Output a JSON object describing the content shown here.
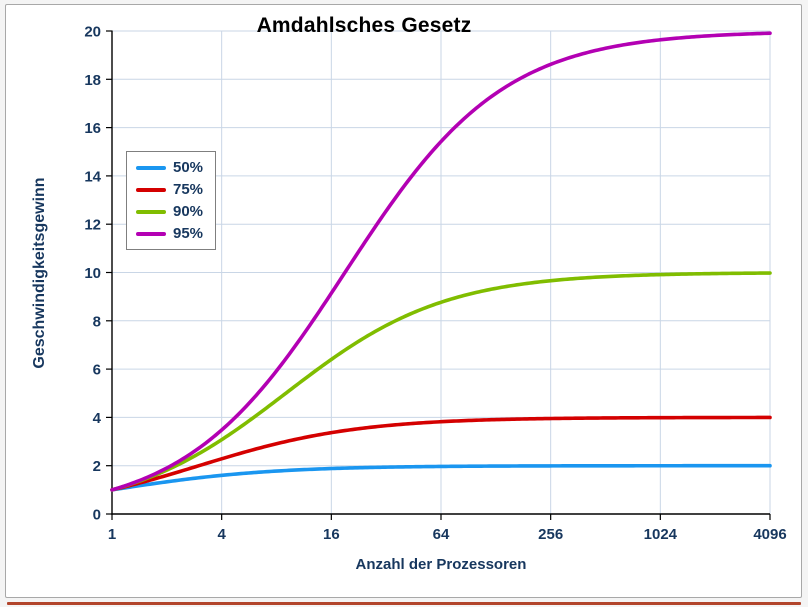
{
  "frame": {
    "bottom_accent_color": "#b2452c"
  },
  "chart_data": {
    "type": "line",
    "title": "Amdahlsches Gesetz",
    "xlabel": "Anzahl der Prozessoren",
    "ylabel": "Geschwindigkeitsgewinn",
    "x_scale": "log4",
    "x_range": [
      1,
      4096
    ],
    "x_ticks": [
      1,
      4,
      16,
      64,
      256,
      1024,
      4096
    ],
    "ylim": [
      0,
      20
    ],
    "y_ticks": [
      0,
      2,
      4,
      6,
      8,
      10,
      12,
      14,
      16,
      18,
      20
    ],
    "grid": true,
    "grid_color": "#c9d6e6",
    "axis_color": "#000000",
    "text_color": "#17375e",
    "title_color": "#000000",
    "legend_position": "upper-left",
    "series": [
      {
        "name": "50%",
        "parallel_fraction": 0.5,
        "color": "#1a96f0",
        "x": [
          1,
          2,
          4,
          8,
          16,
          32,
          64,
          128,
          256,
          512,
          1024,
          2048,
          4096
        ],
        "values": [
          1,
          1.333,
          1.6,
          1.778,
          1.882,
          1.939,
          1.969,
          1.984,
          1.992,
          1.996,
          1.998,
          1.999,
          2.0
        ]
      },
      {
        "name": "75%",
        "parallel_fraction": 0.75,
        "color": "#d40000",
        "x": [
          1,
          2,
          4,
          8,
          16,
          32,
          64,
          128,
          256,
          512,
          1024,
          2048,
          4096
        ],
        "values": [
          1,
          1.6,
          2.286,
          2.909,
          3.368,
          3.657,
          3.82,
          3.908,
          3.953,
          3.977,
          3.988,
          3.994,
          3.997
        ]
      },
      {
        "name": "90%",
        "parallel_fraction": 0.9,
        "color": "#80bd00",
        "x": [
          1,
          2,
          4,
          8,
          16,
          32,
          64,
          128,
          256,
          512,
          1024,
          2048,
          4096
        ],
        "values": [
          1,
          1.818,
          3.077,
          4.706,
          6.4,
          7.805,
          8.767,
          9.343,
          9.661,
          9.828,
          9.913,
          9.956,
          9.978
        ]
      },
      {
        "name": "95%",
        "parallel_fraction": 0.95,
        "color": "#b300b3",
        "x": [
          1,
          2,
          4,
          8,
          16,
          32,
          64,
          128,
          256,
          512,
          1024,
          2048,
          4096
        ],
        "values": [
          1,
          1.905,
          3.478,
          5.926,
          9.143,
          12.549,
          15.422,
          17.415,
          18.618,
          19.284,
          19.636,
          19.817,
          19.908
        ]
      }
    ]
  }
}
